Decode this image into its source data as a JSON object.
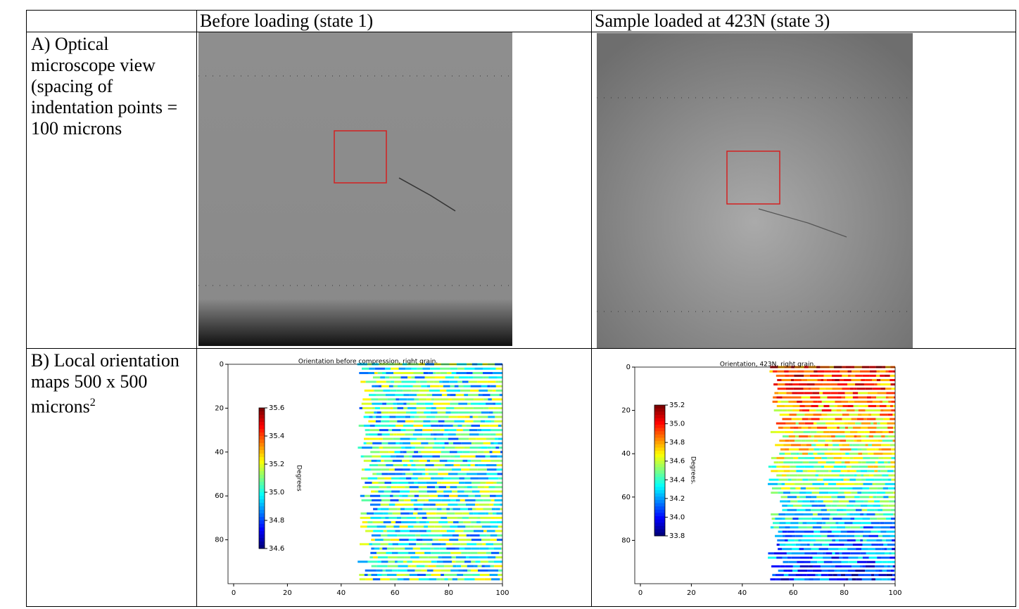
{
  "table": {
    "header": [
      "Before loading (state 1)",
      "Sample loaded at 423N (state 3)"
    ],
    "rows": [
      {
        "label": "A) Optical microscope view (spacing of indentation points = 100 microns"
      },
      {
        "label": "B) Local orientation maps 500 x 500 microns",
        "superscript": "2"
      }
    ]
  },
  "maps": [
    {
      "title": "Orientation before compression, right grain.",
      "xticks": [
        0,
        20,
        40,
        60,
        80,
        100
      ],
      "yticks": [
        0,
        20,
        40,
        60,
        80
      ],
      "colorbar_ticks": [
        {
          "value": 35.6,
          "label": "35.6"
        },
        {
          "value": 35.4,
          "label": "35.4"
        },
        {
          "value": 35.2,
          "label": "35.2"
        },
        {
          "value": 35,
          "label": "35.0"
        },
        {
          "value": 34.8,
          "label": "34.8"
        },
        {
          "value": 34.6,
          "label": "34.6"
        }
      ],
      "colorbar_label": "Degrees"
    },
    {
      "title": "Orientation, 423N, right grain.",
      "xticks": [
        0,
        20,
        40,
        60,
        80,
        100
      ],
      "yticks": [
        0,
        20,
        40,
        60,
        80
      ],
      "colorbar_ticks": [
        {
          "value": 35.2,
          "label": "35.2"
        },
        {
          "value": 35,
          "label": "35.0"
        },
        {
          "value": 34.8,
          "label": "34.8"
        },
        {
          "value": 34.6,
          "label": "34.6"
        },
        {
          "value": 34.4,
          "label": "34.4"
        },
        {
          "value": 34.2,
          "label": "34.2"
        },
        {
          "value": 34,
          "label": "34.0"
        },
        {
          "value": 33.8,
          "label": "33.8"
        }
      ],
      "colorbar_label": "Degrees."
    }
  ]
}
